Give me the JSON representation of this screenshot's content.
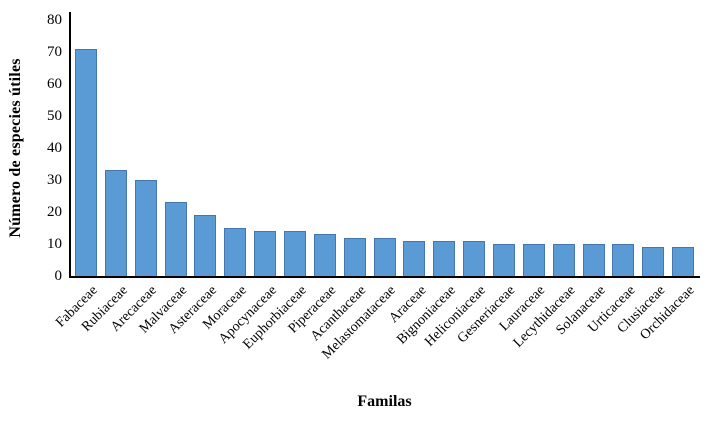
{
  "figure": {
    "background_color": "#ffffff",
    "axis_color": "#000000",
    "bar_color": "#5B9BD5",
    "bar_border_color": "#4577AE",
    "text_color": "#000000"
  },
  "chart_data": {
    "type": "bar",
    "title": "",
    "xlabel": "Familas",
    "ylabel": "Número de especies útiles",
    "categories": [
      "Fabaceae",
      "Rubiaceae",
      "Arecaceae",
      "Malvaceae",
      "Asteraceae",
      "Moraceae",
      "Apocynaceae",
      "Euphorbiaceae",
      "Piperaceae",
      "Acanthaceae",
      "Melastomataceae",
      "Araceae",
      "Bignoniaceae",
      "Heliconiaceae",
      "Gesneriaceae",
      "Lauraceae",
      "Lecythidaceae",
      "Solanaceae",
      "Urticaceae",
      "Clusiaceae",
      "Orchidaceae"
    ],
    "values": [
      71,
      33,
      30,
      23,
      19,
      15,
      14,
      14,
      13,
      12,
      12,
      11,
      11,
      11,
      10,
      10,
      10,
      10,
      10,
      9,
      9
    ],
    "ylim": [
      0,
      80
    ],
    "yticks": [
      0,
      10,
      20,
      30,
      40,
      50,
      60,
      70,
      80
    ],
    "grid": false,
    "legend": false,
    "x_tick_label_rotation_deg": -45
  }
}
